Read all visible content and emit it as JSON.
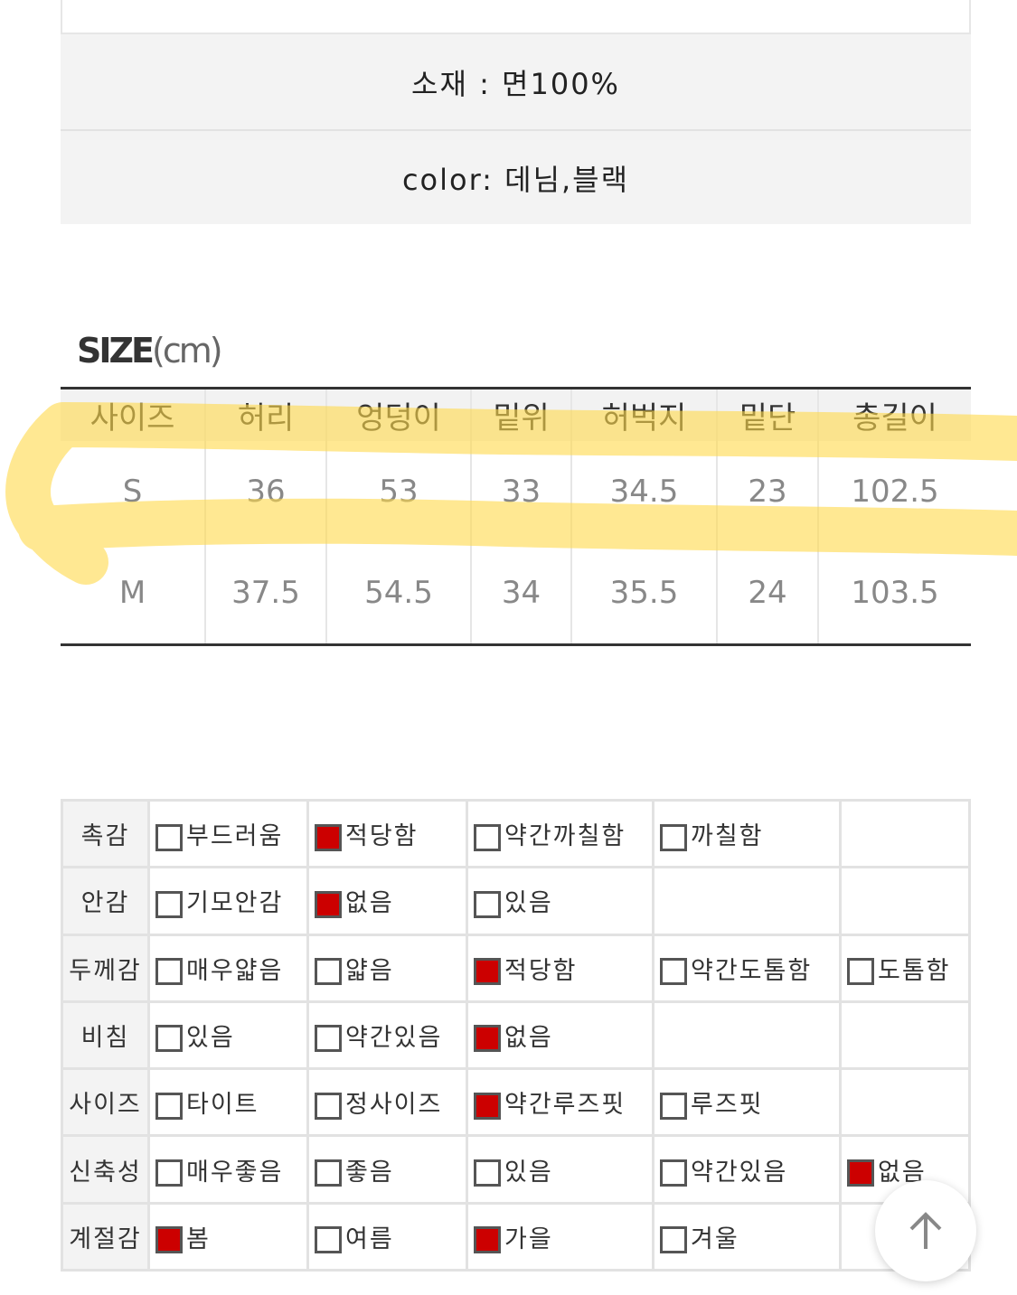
{
  "info": {
    "material": "소재 : 면100%",
    "color": "color: 데님,블랙"
  },
  "size_section": {
    "title": "SIZE",
    "unit": "(cm)",
    "headers": [
      "사이즈",
      "허리",
      "엉덩이",
      "밑위",
      "허벅지",
      "밑단",
      "총길이"
    ],
    "rows": [
      [
        "S",
        "36",
        "53",
        "33",
        "34.5",
        "23",
        "102.5"
      ],
      [
        "M",
        "37.5",
        "54.5",
        "34",
        "35.5",
        "24",
        "103.5"
      ]
    ],
    "highlight_color": "#ffd84a"
  },
  "features": {
    "checked_color": "#cc0000",
    "rows": [
      {
        "label": "촉감",
        "options": [
          {
            "text": "부드러움",
            "checked": false
          },
          {
            "text": "적당함",
            "checked": true
          },
          {
            "text": "약간까칠함",
            "checked": false
          },
          {
            "text": "까칠함",
            "checked": false
          }
        ]
      },
      {
        "label": "안감",
        "options": [
          {
            "text": "기모안감",
            "checked": false
          },
          {
            "text": "없음",
            "checked": true
          },
          {
            "text": "있음",
            "checked": false
          }
        ]
      },
      {
        "label": "두께감",
        "options": [
          {
            "text": "매우얇음",
            "checked": false
          },
          {
            "text": "얇음",
            "checked": false
          },
          {
            "text": "적당함",
            "checked": true
          },
          {
            "text": "약간도톰함",
            "checked": false
          },
          {
            "text": "도톰함",
            "checked": false
          }
        ]
      },
      {
        "label": "비침",
        "options": [
          {
            "text": "있음",
            "checked": false
          },
          {
            "text": "약간있음",
            "checked": false
          },
          {
            "text": "없음",
            "checked": true
          }
        ]
      },
      {
        "label": "사이즈",
        "options": [
          {
            "text": "타이트",
            "checked": false
          },
          {
            "text": "정사이즈",
            "checked": false
          },
          {
            "text": "약간루즈핏",
            "checked": true
          },
          {
            "text": "루즈핏",
            "checked": false
          }
        ]
      },
      {
        "label": "신축성",
        "options": [
          {
            "text": "매우좋음",
            "checked": false
          },
          {
            "text": "좋음",
            "checked": false
          },
          {
            "text": "있음",
            "checked": false
          },
          {
            "text": "약간있음",
            "checked": false
          },
          {
            "text": "없음",
            "checked": true
          }
        ]
      },
      {
        "label": "계절감",
        "options": [
          {
            "text": "봄",
            "checked": true
          },
          {
            "text": "여름",
            "checked": false
          },
          {
            "text": "가을",
            "checked": true
          },
          {
            "text": "겨울",
            "checked": false
          }
        ]
      }
    ]
  },
  "scroll_top": {
    "icon": "arrow-up-icon"
  }
}
